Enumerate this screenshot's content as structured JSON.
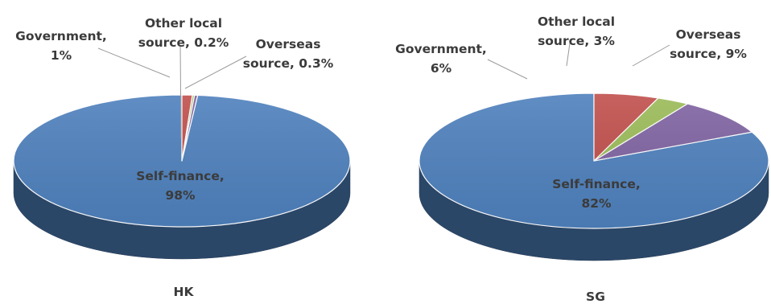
{
  "chart_data": [
    {
      "type": "pie",
      "xlabel": "HK",
      "slices": [
        {
          "label_lines": [
            "Self-finance,",
            "98%"
          ],
          "value": 98.5,
          "color": "#4f81bd"
        },
        {
          "label_lines": [
            "Government,",
            "1%"
          ],
          "value": 1.0,
          "color": "#c0504d"
        },
        {
          "label_lines": [
            "Other local",
            "source, 0.2%"
          ],
          "value": 0.2,
          "color": "#9bbb59"
        },
        {
          "label_lines": [
            "Overseas",
            "source, 0.3%"
          ],
          "value": 0.3,
          "color": "#8064a2"
        }
      ]
    },
    {
      "type": "pie",
      "xlabel": "SG",
      "slices": [
        {
          "label_lines": [
            "Self-finance,",
            "82%"
          ],
          "value": 82,
          "color": "#4f81bd"
        },
        {
          "label_lines": [
            "Government,",
            "6%"
          ],
          "value": 6,
          "color": "#c0504d"
        },
        {
          "label_lines": [
            "Other local",
            "source, 3%"
          ],
          "value": 3,
          "color": "#9bbb59"
        },
        {
          "label_lines": [
            "Overseas",
            "source, 9%"
          ],
          "value": 9,
          "color": "#8064a2"
        }
      ]
    }
  ]
}
